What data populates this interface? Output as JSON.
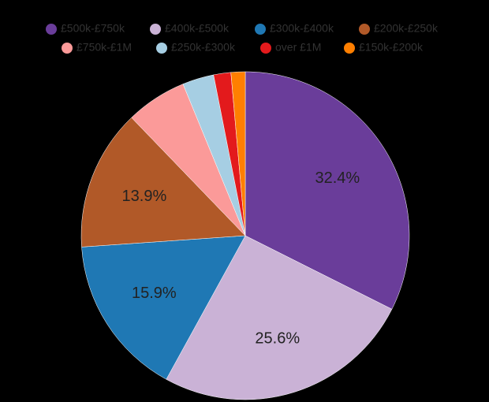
{
  "chart_data": {
    "type": "pie",
    "categories": [
      "£500k-£750k",
      "£400k-£500k",
      "£300k-£400k",
      "£200k-£250k",
      "£750k-£1M",
      "£250k-£300k",
      "over £1M",
      "£150k-£200k"
    ],
    "values": [
      32.4,
      25.6,
      15.9,
      13.9,
      6.0,
      3.1,
      1.7,
      1.4
    ],
    "value_labels": [
      "32.4%",
      "25.6%",
      "15.9%",
      "13.9%",
      null,
      null,
      null,
      null
    ],
    "colors": [
      "#6a3d9a",
      "#cab2d6",
      "#1f78b4",
      "#b15928",
      "#fb9a99",
      "#a6cee3",
      "#e31a1c",
      "#ff7f00"
    ],
    "legend": "top"
  }
}
